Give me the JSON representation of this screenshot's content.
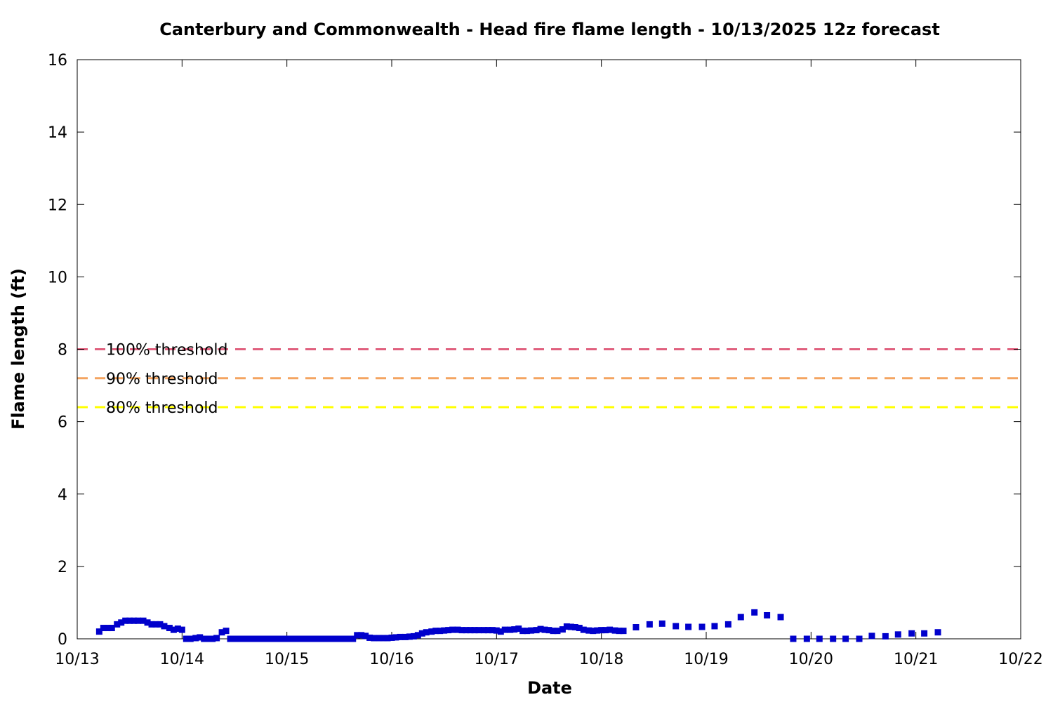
{
  "chart_data": {
    "type": "scatter",
    "title": "Canterbury and Commonwealth - Head fire flame length - 10/13/2025 12z forecast",
    "xlabel": "Date",
    "ylabel": "Flame length (ft)",
    "xlim": [
      0,
      9
    ],
    "ylim": [
      0,
      16
    ],
    "x_ticks": [
      {
        "x": 0,
        "label": "10/13"
      },
      {
        "x": 1,
        "label": "10/14"
      },
      {
        "x": 2,
        "label": "10/15"
      },
      {
        "x": 3,
        "label": "10/16"
      },
      {
        "x": 4,
        "label": "10/17"
      },
      {
        "x": 5,
        "label": "10/18"
      },
      {
        "x": 6,
        "label": "10/19"
      },
      {
        "x": 7,
        "label": "10/20"
      },
      {
        "x": 8,
        "label": "10/21"
      },
      {
        "x": 9,
        "label": "10/22"
      }
    ],
    "y_ticks": [
      0,
      2,
      4,
      6,
      8,
      10,
      12,
      14,
      16
    ],
    "grid": false,
    "thresholds": [
      {
        "label": "100% threshold",
        "value": 8.0,
        "color": "#e0607e"
      },
      {
        "label": "90% threshold",
        "value": 7.2,
        "color": "#f4a460"
      },
      {
        "label": "80% threshold",
        "value": 6.4,
        "color": "#ffff00"
      }
    ],
    "series": [
      {
        "color": "#0000cc",
        "points": [
          [
            0.21,
            0.2
          ],
          [
            0.25,
            0.3
          ],
          [
            0.29,
            0.3
          ],
          [
            0.33,
            0.3
          ],
          [
            0.38,
            0.4
          ],
          [
            0.42,
            0.45
          ],
          [
            0.46,
            0.5
          ],
          [
            0.5,
            0.5
          ],
          [
            0.54,
            0.5
          ],
          [
            0.58,
            0.5
          ],
          [
            0.63,
            0.5
          ],
          [
            0.67,
            0.45
          ],
          [
            0.71,
            0.4
          ],
          [
            0.75,
            0.4
          ],
          [
            0.79,
            0.4
          ],
          [
            0.83,
            0.35
          ],
          [
            0.88,
            0.3
          ],
          [
            0.92,
            0.25
          ],
          [
            0.96,
            0.28
          ],
          [
            1.0,
            0.25
          ],
          [
            1.04,
            0.0
          ],
          [
            1.08,
            0.0
          ],
          [
            1.13,
            0.02
          ],
          [
            1.17,
            0.04
          ],
          [
            1.21,
            0.0
          ],
          [
            1.25,
            0.0
          ],
          [
            1.29,
            0.0
          ],
          [
            1.33,
            0.02
          ],
          [
            1.38,
            0.18
          ],
          [
            1.42,
            0.22
          ],
          [
            1.46,
            0.0
          ],
          [
            1.5,
            0.0
          ],
          [
            1.54,
            0.0
          ],
          [
            1.58,
            0.0
          ],
          [
            1.63,
            0.0
          ],
          [
            1.67,
            0.0
          ],
          [
            1.71,
            0.0
          ],
          [
            1.75,
            0.0
          ],
          [
            1.79,
            0.0
          ],
          [
            1.83,
            0.0
          ],
          [
            1.88,
            0.0
          ],
          [
            1.92,
            0.0
          ],
          [
            1.96,
            0.0
          ],
          [
            2.0,
            0.0
          ],
          [
            2.04,
            0.0
          ],
          [
            2.08,
            0.0
          ],
          [
            2.13,
            0.0
          ],
          [
            2.17,
            0.0
          ],
          [
            2.21,
            0.0
          ],
          [
            2.25,
            0.0
          ],
          [
            2.29,
            0.0
          ],
          [
            2.33,
            0.0
          ],
          [
            2.38,
            0.0
          ],
          [
            2.42,
            0.0
          ],
          [
            2.46,
            0.0
          ],
          [
            2.5,
            0.0
          ],
          [
            2.54,
            0.0
          ],
          [
            2.58,
            0.0
          ],
          [
            2.63,
            0.0
          ],
          [
            2.67,
            0.1
          ],
          [
            2.71,
            0.1
          ],
          [
            2.75,
            0.08
          ],
          [
            2.79,
            0.03
          ],
          [
            2.83,
            0.02
          ],
          [
            2.88,
            0.02
          ],
          [
            2.92,
            0.02
          ],
          [
            2.96,
            0.02
          ],
          [
            3.0,
            0.03
          ],
          [
            3.04,
            0.04
          ],
          [
            3.08,
            0.05
          ],
          [
            3.13,
            0.05
          ],
          [
            3.17,
            0.06
          ],
          [
            3.21,
            0.07
          ],
          [
            3.25,
            0.1
          ],
          [
            3.29,
            0.15
          ],
          [
            3.33,
            0.18
          ],
          [
            3.38,
            0.2
          ],
          [
            3.42,
            0.22
          ],
          [
            3.46,
            0.22
          ],
          [
            3.5,
            0.23
          ],
          [
            3.54,
            0.24
          ],
          [
            3.58,
            0.25
          ],
          [
            3.63,
            0.25
          ],
          [
            3.67,
            0.24
          ],
          [
            3.71,
            0.24
          ],
          [
            3.75,
            0.24
          ],
          [
            3.79,
            0.24
          ],
          [
            3.83,
            0.24
          ],
          [
            3.88,
            0.24
          ],
          [
            3.92,
            0.24
          ],
          [
            3.96,
            0.24
          ],
          [
            4.0,
            0.23
          ],
          [
            4.04,
            0.2
          ],
          [
            4.08,
            0.25
          ],
          [
            4.13,
            0.25
          ],
          [
            4.17,
            0.26
          ],
          [
            4.21,
            0.28
          ],
          [
            4.25,
            0.22
          ],
          [
            4.29,
            0.22
          ],
          [
            4.33,
            0.23
          ],
          [
            4.38,
            0.24
          ],
          [
            4.42,
            0.27
          ],
          [
            4.46,
            0.25
          ],
          [
            4.5,
            0.24
          ],
          [
            4.54,
            0.22
          ],
          [
            4.58,
            0.22
          ],
          [
            4.63,
            0.26
          ],
          [
            4.67,
            0.34
          ],
          [
            4.71,
            0.33
          ],
          [
            4.75,
            0.32
          ],
          [
            4.79,
            0.3
          ],
          [
            4.83,
            0.25
          ],
          [
            4.88,
            0.23
          ],
          [
            4.92,
            0.22
          ],
          [
            4.96,
            0.23
          ],
          [
            5.0,
            0.24
          ],
          [
            5.04,
            0.24
          ],
          [
            5.08,
            0.25
          ],
          [
            5.13,
            0.23
          ],
          [
            5.17,
            0.22
          ],
          [
            5.21,
            0.22
          ],
          [
            5.33,
            0.32
          ],
          [
            5.46,
            0.4
          ],
          [
            5.58,
            0.42
          ],
          [
            5.71,
            0.35
          ],
          [
            5.83,
            0.33
          ],
          [
            5.96,
            0.33
          ],
          [
            6.08,
            0.35
          ],
          [
            6.21,
            0.4
          ],
          [
            6.33,
            0.6
          ],
          [
            6.46,
            0.73
          ],
          [
            6.58,
            0.65
          ],
          [
            6.71,
            0.6
          ],
          [
            6.83,
            0.0
          ],
          [
            6.96,
            0.0
          ],
          [
            7.08,
            0.0
          ],
          [
            7.21,
            0.0
          ],
          [
            7.33,
            0.0
          ],
          [
            7.46,
            0.0
          ],
          [
            7.58,
            0.08
          ],
          [
            7.71,
            0.07
          ],
          [
            7.83,
            0.12
          ],
          [
            7.96,
            0.15
          ],
          [
            8.08,
            0.15
          ],
          [
            8.21,
            0.18
          ]
        ]
      }
    ]
  }
}
